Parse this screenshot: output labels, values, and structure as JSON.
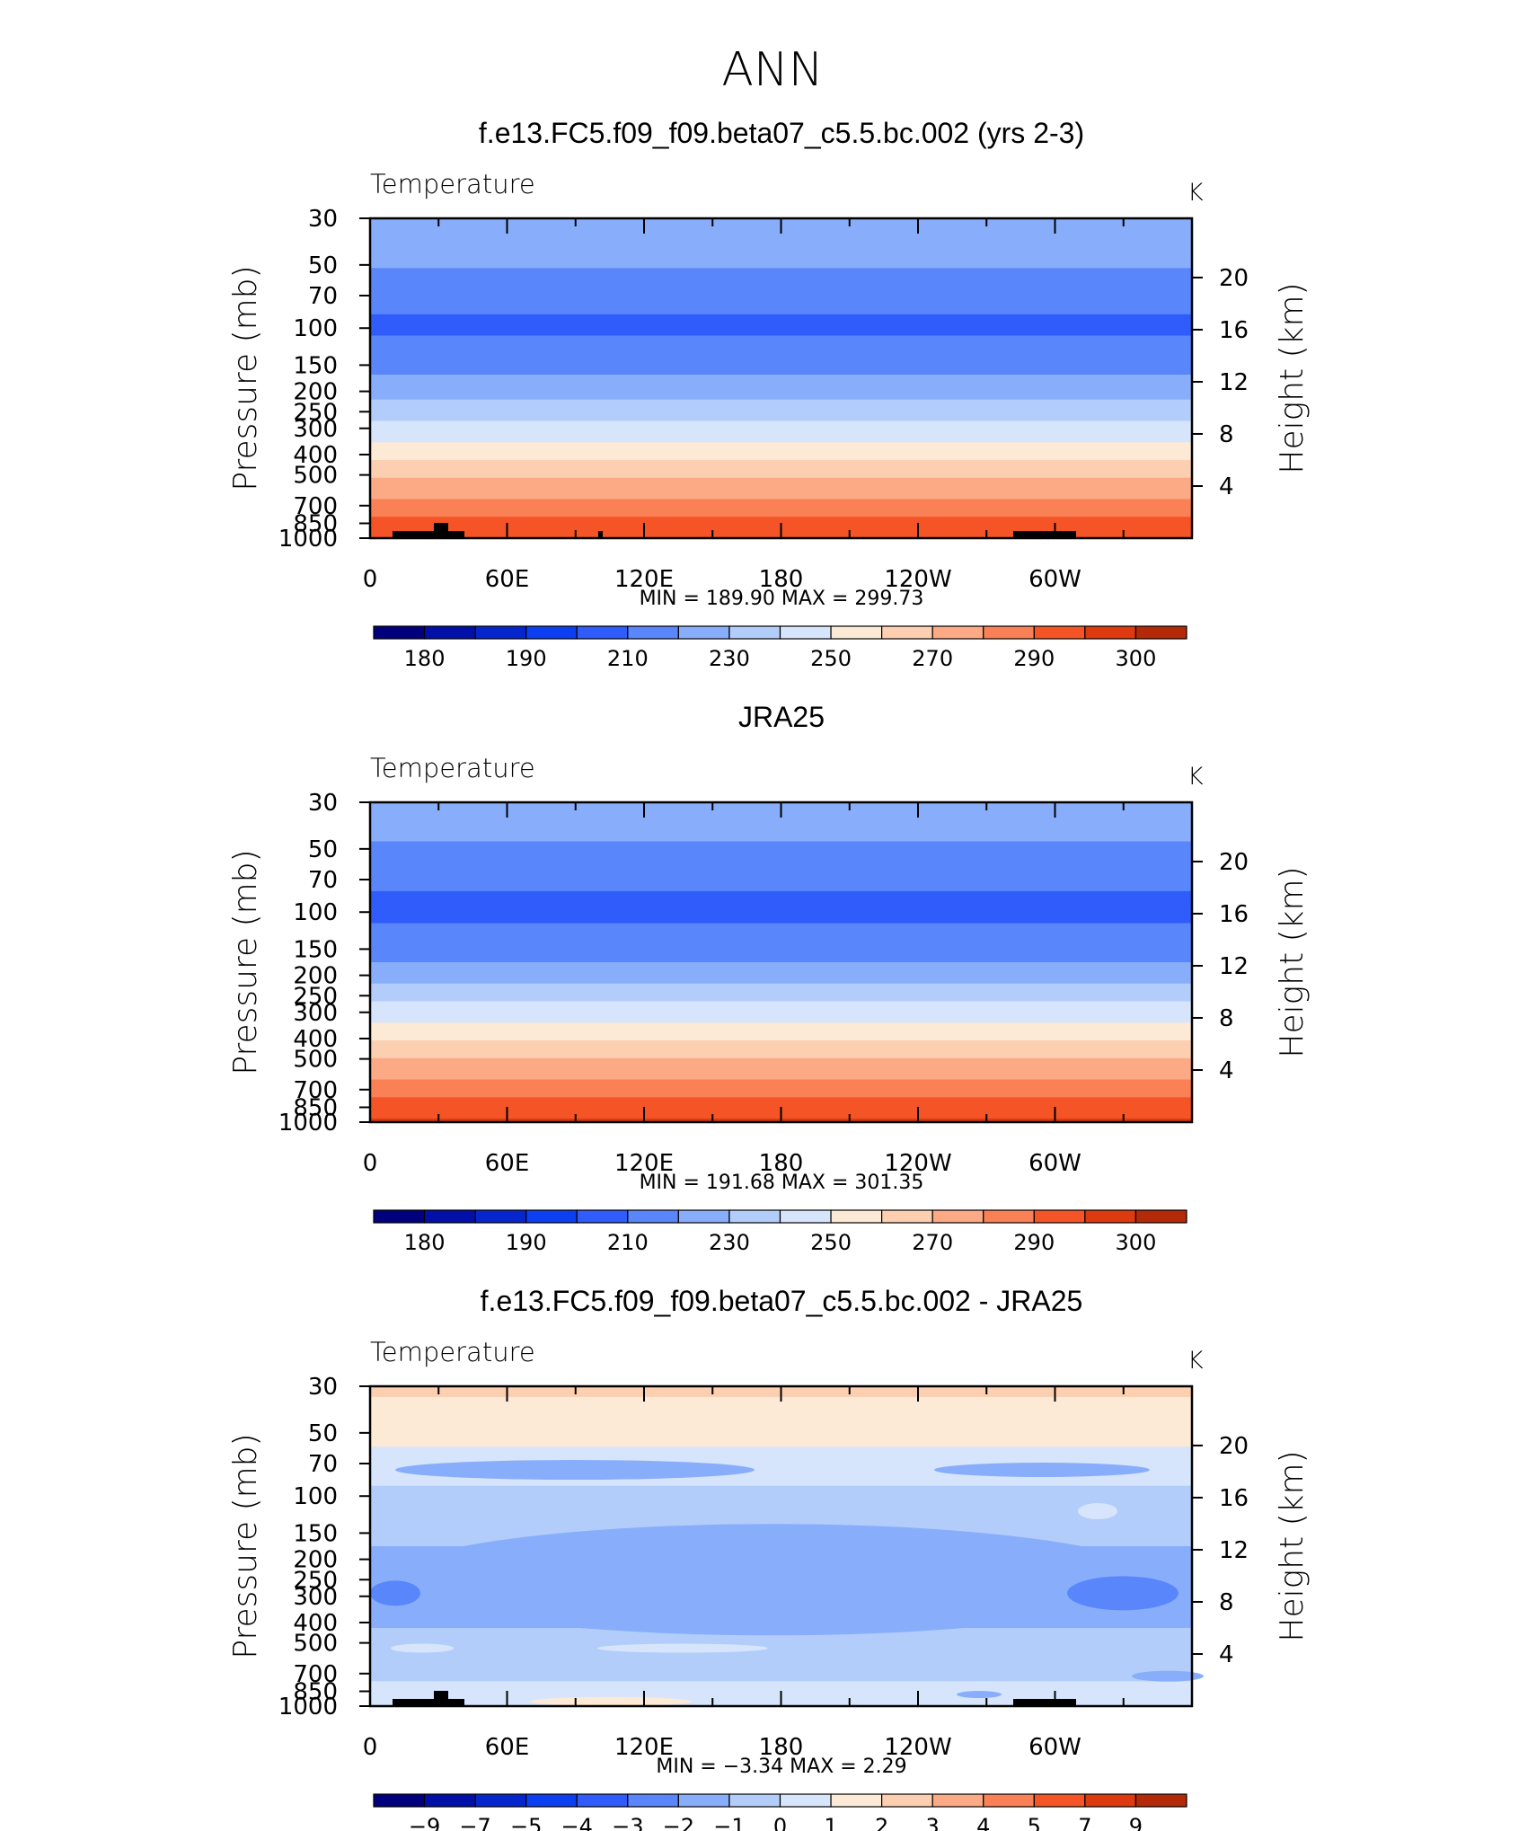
{
  "figure": {
    "title": "ANN"
  },
  "colors": {
    "temperature_levels": [
      "#00007f",
      "#0010a8",
      "#0526cd",
      "#0c3ff2",
      "#2f5cfb",
      "#5a86fb",
      "#88aefb",
      "#b3cdfb",
      "#d6e5fb",
      "#fce9d6",
      "#fdcfb1",
      "#fca985",
      "#fa8055",
      "#f55526",
      "#dd3a10",
      "#b42907",
      "#880f00"
    ],
    "temperature_colorbar": [
      "#00007f",
      "#0010a8",
      "#0526cd",
      "#0c3ff2",
      "#2f5cfb",
      "#5a86fb",
      "#88aefb",
      "#b3cdfb",
      "#d6e5fb",
      "#fce9d6",
      "#fdcfb1",
      "#fca985",
      "#fa8055",
      "#f55526",
      "#dd3a10",
      "#b42907"
    ],
    "difference_colorbar": [
      "#00007f",
      "#0010a8",
      "#0526cd",
      "#0c3ff2",
      "#2f5cfb",
      "#5a86fb",
      "#88aefb",
      "#b3cdfb",
      "#d6e5fb",
      "#fce9d6",
      "#fdcfb1",
      "#fca985",
      "#fa8055",
      "#f55526",
      "#dd3a10",
      "#b42907"
    ],
    "terrain": "#000000"
  },
  "chart_data": [
    {
      "type": "heatmap",
      "title": "f.e13.FC5.f09_f09.beta07_c5.5.bc.002 (yrs 2-3)",
      "subtitle": "Temperature",
      "units": "K",
      "ylabel": "Pressure (mb)",
      "ylabel_right": "Height (km)",
      "x_tick_labels": [
        "0",
        "60E",
        "120E",
        "180",
        "120W",
        "60W"
      ],
      "y_tick_labels": [
        "30",
        "50",
        "70",
        "100",
        "150",
        "200",
        "250",
        "300",
        "400",
        "500",
        "700",
        "850",
        "1000"
      ],
      "y_right_tick_labels": [
        "20",
        "16",
        "12",
        "8",
        "4"
      ],
      "xlim": [
        0,
        360
      ],
      "ylim": [
        1000,
        30
      ],
      "y_scale": "log",
      "min_max_text": "MIN  =  189.90   MAX  =  299.73",
      "colorbar_labels": [
        "180",
        "190",
        "210",
        "230",
        "250",
        "270",
        "290",
        "300"
      ],
      "profile": {
        "pressure": [
          30,
          50,
          70,
          100,
          150,
          200,
          250,
          300,
          400,
          500,
          700,
          850,
          1000
        ],
        "temperature": [
          218,
          211,
          203,
          198,
          207,
          216,
          226,
          234,
          246,
          258,
          274,
          283,
          290
        ]
      }
    },
    {
      "type": "heatmap",
      "title": "JRA25",
      "subtitle": "Temperature",
      "units": "K",
      "ylabel": "Pressure (mb)",
      "ylabel_right": "Height (km)",
      "x_tick_labels": [
        "0",
        "60E",
        "120E",
        "180",
        "120W",
        "60W"
      ],
      "y_tick_labels": [
        "30",
        "50",
        "70",
        "100",
        "150",
        "200",
        "250",
        "300",
        "400",
        "500",
        "700",
        "850",
        "1000"
      ],
      "y_right_tick_labels": [
        "20",
        "16",
        "12",
        "8",
        "4"
      ],
      "xlim": [
        0,
        360
      ],
      "ylim": [
        1000,
        30
      ],
      "y_scale": "log",
      "min_max_text": "MIN  =  191.68   MAX  =  301.35",
      "colorbar_labels": [
        "180",
        "190",
        "210",
        "230",
        "250",
        "270",
        "290",
        "300"
      ],
      "profile": {
        "pressure": [
          30,
          50,
          70,
          100,
          150,
          200,
          250,
          300,
          400,
          500,
          700,
          850,
          1000
        ],
        "temperature": [
          216,
          209,
          201,
          198,
          206,
          215,
          226,
          236,
          248,
          260,
          275,
          285,
          292
        ]
      }
    },
    {
      "type": "heatmap",
      "title": "f.e13.FC5.f09_f09.beta07_c5.5.bc.002 - JRA25",
      "subtitle": "Temperature",
      "units": "K",
      "ylabel": "Pressure (mb)",
      "ylabel_right": "Height (km)",
      "x_tick_labels": [
        "0",
        "60E",
        "120E",
        "180",
        "120W",
        "60W"
      ],
      "y_tick_labels": [
        "30",
        "50",
        "70",
        "100",
        "150",
        "200",
        "250",
        "300",
        "400",
        "500",
        "700",
        "850",
        "1000"
      ],
      "y_right_tick_labels": [
        "20",
        "16",
        "12",
        "8",
        "4"
      ],
      "xlim": [
        0,
        360
      ],
      "ylim": [
        1000,
        30
      ],
      "y_scale": "log",
      "min_max_text": "MIN  =    −3.34   MAX  =      2.29",
      "colorbar_labels": [
        "−9",
        "−7",
        "−5",
        "−4",
        "−3",
        "−2",
        "−1",
        "0",
        "1",
        "2",
        "3",
        "4",
        "5",
        "7",
        "9"
      ],
      "profile": {
        "pressure": [
          30,
          50,
          70,
          100,
          150,
          200,
          250,
          300,
          400,
          500,
          700,
          850,
          1000
        ],
        "difference": [
          1.2,
          0.4,
          -0.6,
          -1.2,
          -1.8,
          -2.2,
          -2.4,
          -2.5,
          -2.2,
          -1.6,
          -1.2,
          -0.8,
          -0.2
        ]
      }
    }
  ]
}
